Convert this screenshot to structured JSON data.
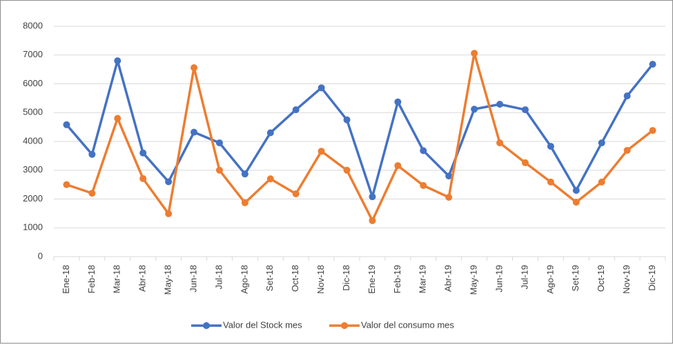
{
  "chart_data": {
    "type": "line",
    "categories": [
      "Ene-18",
      "Feb-18",
      "Mar-18",
      "Abr-18",
      "May-18",
      "Jun-18",
      "Jul-18",
      "Ago-18",
      "Set-18",
      "Oct-18",
      "Nov-18",
      "Dic-18",
      "Ene-19",
      "Feb-19",
      "Mar-19",
      "Abr-19",
      "May-19",
      "Jun-19",
      "Jul-19",
      "Ago-19",
      "Set-19",
      "Oct-19",
      "Nov-19",
      "Dic-19"
    ],
    "series": [
      {
        "name": "Valor del Stock mes",
        "color": "#4472c4",
        "values": [
          4580,
          3550,
          6800,
          3600,
          2600,
          4320,
          3950,
          2870,
          4300,
          5100,
          5860,
          4750,
          2080,
          5370,
          3680,
          2800,
          5120,
          5290,
          5100,
          3830,
          2300,
          3950,
          5580,
          6680
        ]
      },
      {
        "name": "Valor del consumo mes",
        "color": "#ed7d31",
        "values": [
          2500,
          2200,
          4800,
          2710,
          1490,
          6560,
          3000,
          1870,
          2700,
          2180,
          3660,
          3000,
          1250,
          3160,
          2470,
          2060,
          7060,
          3950,
          3260,
          2590,
          1890,
          2590,
          3690,
          4380
        ]
      }
    ],
    "ylim": [
      0,
      8000
    ],
    "yticks": [
      0,
      1000,
      2000,
      3000,
      4000,
      5000,
      6000,
      7000,
      8000
    ],
    "grid": true,
    "legend": "bottom"
  }
}
